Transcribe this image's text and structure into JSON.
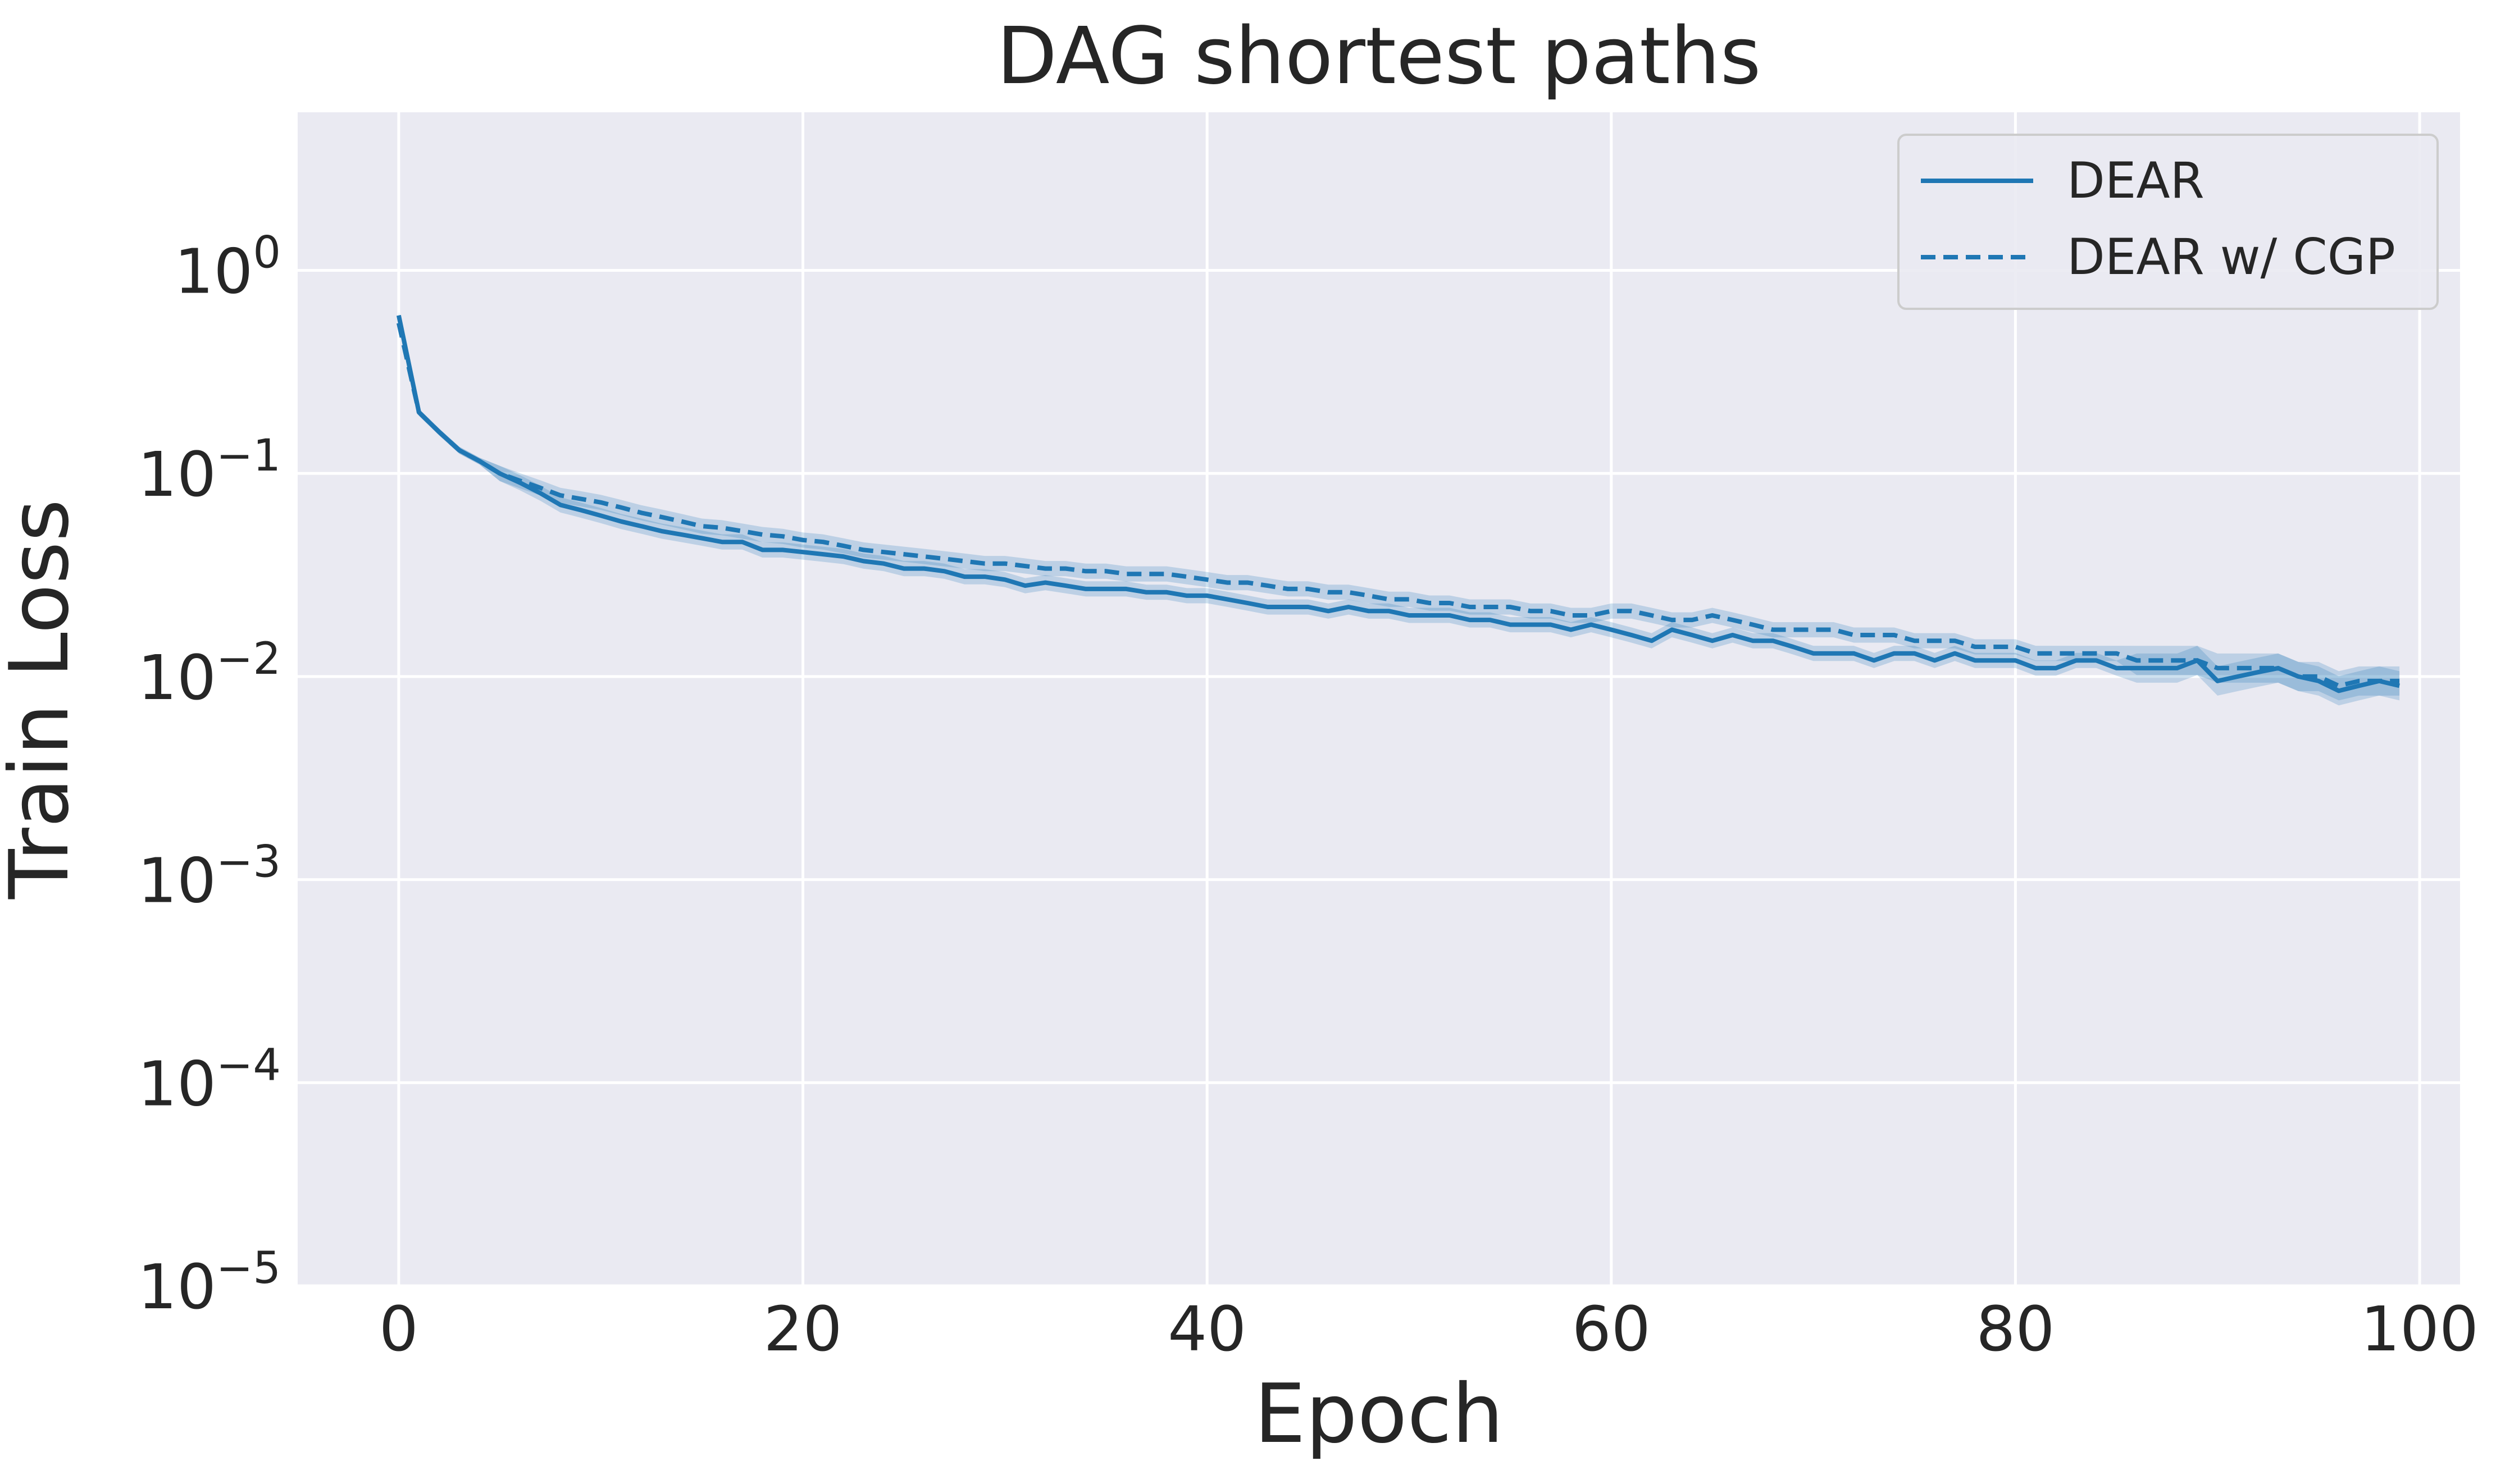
{
  "colors": {
    "plot_bg": "#eaeaf2",
    "grid": "#ffffff",
    "series": "#1f77b4",
    "band_fill": "#1f77b4",
    "text": "#262626",
    "legend_bg": "#eaeaf2",
    "legend_border": "#cccccc"
  },
  "chart_data": {
    "type": "line",
    "title": "DAG shortest paths",
    "xlabel": "Epoch",
    "ylabel": "Train Loss",
    "xlim": [
      -5,
      102
    ],
    "ylim": [
      1e-05,
      6
    ],
    "yscale": "log",
    "grid": true,
    "legend_position": "top-right",
    "xticks": [
      0,
      20,
      40,
      60,
      80,
      100
    ],
    "xtick_labels": [
      "0",
      "20",
      "40",
      "60",
      "80",
      "100"
    ],
    "yticks": [
      1e-05,
      0.0001,
      0.001,
      0.01,
      0.1,
      1
    ],
    "ytick_labels": [
      {
        "base": "10",
        "exp": "−5"
      },
      {
        "base": "10",
        "exp": "−4"
      },
      {
        "base": "10",
        "exp": "−3"
      },
      {
        "base": "10",
        "exp": "−2"
      },
      {
        "base": "10",
        "exp": "−1"
      },
      {
        "base": "10",
        "exp": "0"
      }
    ],
    "series": [
      {
        "name": "DEAR",
        "style": "solid",
        "x": [
          0,
          1,
          2,
          3,
          4,
          5,
          6,
          7,
          8,
          9,
          10,
          11,
          12,
          13,
          14,
          15,
          16,
          17,
          18,
          19,
          20,
          21,
          22,
          23,
          24,
          25,
          26,
          27,
          28,
          29,
          30,
          31,
          32,
          33,
          34,
          35,
          36,
          37,
          38,
          39,
          40,
          41,
          42,
          43,
          44,
          45,
          46,
          47,
          48,
          49,
          50,
          51,
          52,
          53,
          54,
          55,
          56,
          57,
          58,
          59,
          60,
          61,
          62,
          63,
          64,
          65,
          66,
          67,
          68,
          69,
          70,
          71,
          72,
          73,
          74,
          75,
          76,
          77,
          78,
          79,
          80,
          81,
          82,
          83,
          84,
          85,
          86,
          87,
          88,
          89,
          90,
          91,
          92,
          93,
          94,
          95,
          96,
          97,
          98,
          99
        ],
        "y": [
          0.6,
          0.2,
          0.16,
          0.13,
          0.115,
          0.1,
          0.09,
          0.08,
          0.07,
          0.066,
          0.062,
          0.058,
          0.055,
          0.052,
          0.05,
          0.048,
          0.046,
          0.046,
          0.042,
          0.042,
          0.041,
          0.04,
          0.039,
          0.037,
          0.036,
          0.034,
          0.034,
          0.033,
          0.031,
          0.031,
          0.03,
          0.028,
          0.029,
          0.028,
          0.027,
          0.027,
          0.027,
          0.026,
          0.026,
          0.025,
          0.025,
          0.024,
          0.023,
          0.022,
          0.022,
          0.022,
          0.021,
          0.022,
          0.021,
          0.021,
          0.02,
          0.02,
          0.02,
          0.019,
          0.019,
          0.018,
          0.018,
          0.018,
          0.017,
          0.018,
          0.017,
          0.016,
          0.015,
          0.017,
          0.016,
          0.015,
          0.016,
          0.015,
          0.015,
          0.014,
          0.013,
          0.013,
          0.013,
          0.012,
          0.013,
          0.013,
          0.012,
          0.013,
          0.012,
          0.012,
          0.012,
          0.011,
          0.011,
          0.012,
          0.012,
          0.011,
          0.011,
          0.011,
          0.011,
          0.012,
          0.0095,
          0.01,
          0.0105,
          0.011,
          0.01,
          0.0095,
          0.0085,
          0.009,
          0.0095,
          0.009
        ]
      },
      {
        "name": "DEAR w/ CGP",
        "style": "dashed",
        "x": [
          0,
          1,
          2,
          3,
          4,
          5,
          6,
          7,
          8,
          9,
          10,
          11,
          12,
          13,
          14,
          15,
          16,
          17,
          18,
          19,
          20,
          21,
          22,
          23,
          24,
          25,
          26,
          27,
          28,
          29,
          30,
          31,
          32,
          33,
          34,
          35,
          36,
          37,
          38,
          39,
          40,
          41,
          42,
          43,
          44,
          45,
          46,
          47,
          48,
          49,
          50,
          51,
          52,
          53,
          54,
          55,
          56,
          57,
          58,
          59,
          60,
          61,
          62,
          63,
          64,
          65,
          66,
          67,
          68,
          69,
          70,
          71,
          72,
          73,
          74,
          75,
          76,
          77,
          78,
          79,
          80,
          81,
          82,
          83,
          84,
          85,
          86,
          87,
          88,
          89,
          90,
          91,
          92,
          93,
          94,
          95,
          96,
          97,
          98,
          99
        ],
        "y": [
          0.55,
          0.2,
          0.16,
          0.13,
          0.115,
          0.1,
          0.092,
          0.085,
          0.078,
          0.075,
          0.072,
          0.068,
          0.064,
          0.061,
          0.058,
          0.055,
          0.054,
          0.052,
          0.05,
          0.049,
          0.047,
          0.046,
          0.044,
          0.042,
          0.041,
          0.04,
          0.039,
          0.038,
          0.037,
          0.036,
          0.036,
          0.035,
          0.034,
          0.034,
          0.033,
          0.033,
          0.032,
          0.032,
          0.032,
          0.031,
          0.03,
          0.029,
          0.029,
          0.028,
          0.027,
          0.027,
          0.026,
          0.026,
          0.025,
          0.024,
          0.024,
          0.023,
          0.023,
          0.022,
          0.022,
          0.022,
          0.021,
          0.021,
          0.02,
          0.02,
          0.021,
          0.021,
          0.02,
          0.019,
          0.019,
          0.02,
          0.019,
          0.018,
          0.017,
          0.017,
          0.017,
          0.017,
          0.016,
          0.016,
          0.016,
          0.015,
          0.015,
          0.015,
          0.014,
          0.014,
          0.014,
          0.013,
          0.013,
          0.013,
          0.013,
          0.013,
          0.012,
          0.012,
          0.012,
          0.012,
          0.011,
          0.011,
          0.011,
          0.011,
          0.01,
          0.01,
          0.009,
          0.0095,
          0.0095,
          0.0095
        ]
      }
    ]
  }
}
